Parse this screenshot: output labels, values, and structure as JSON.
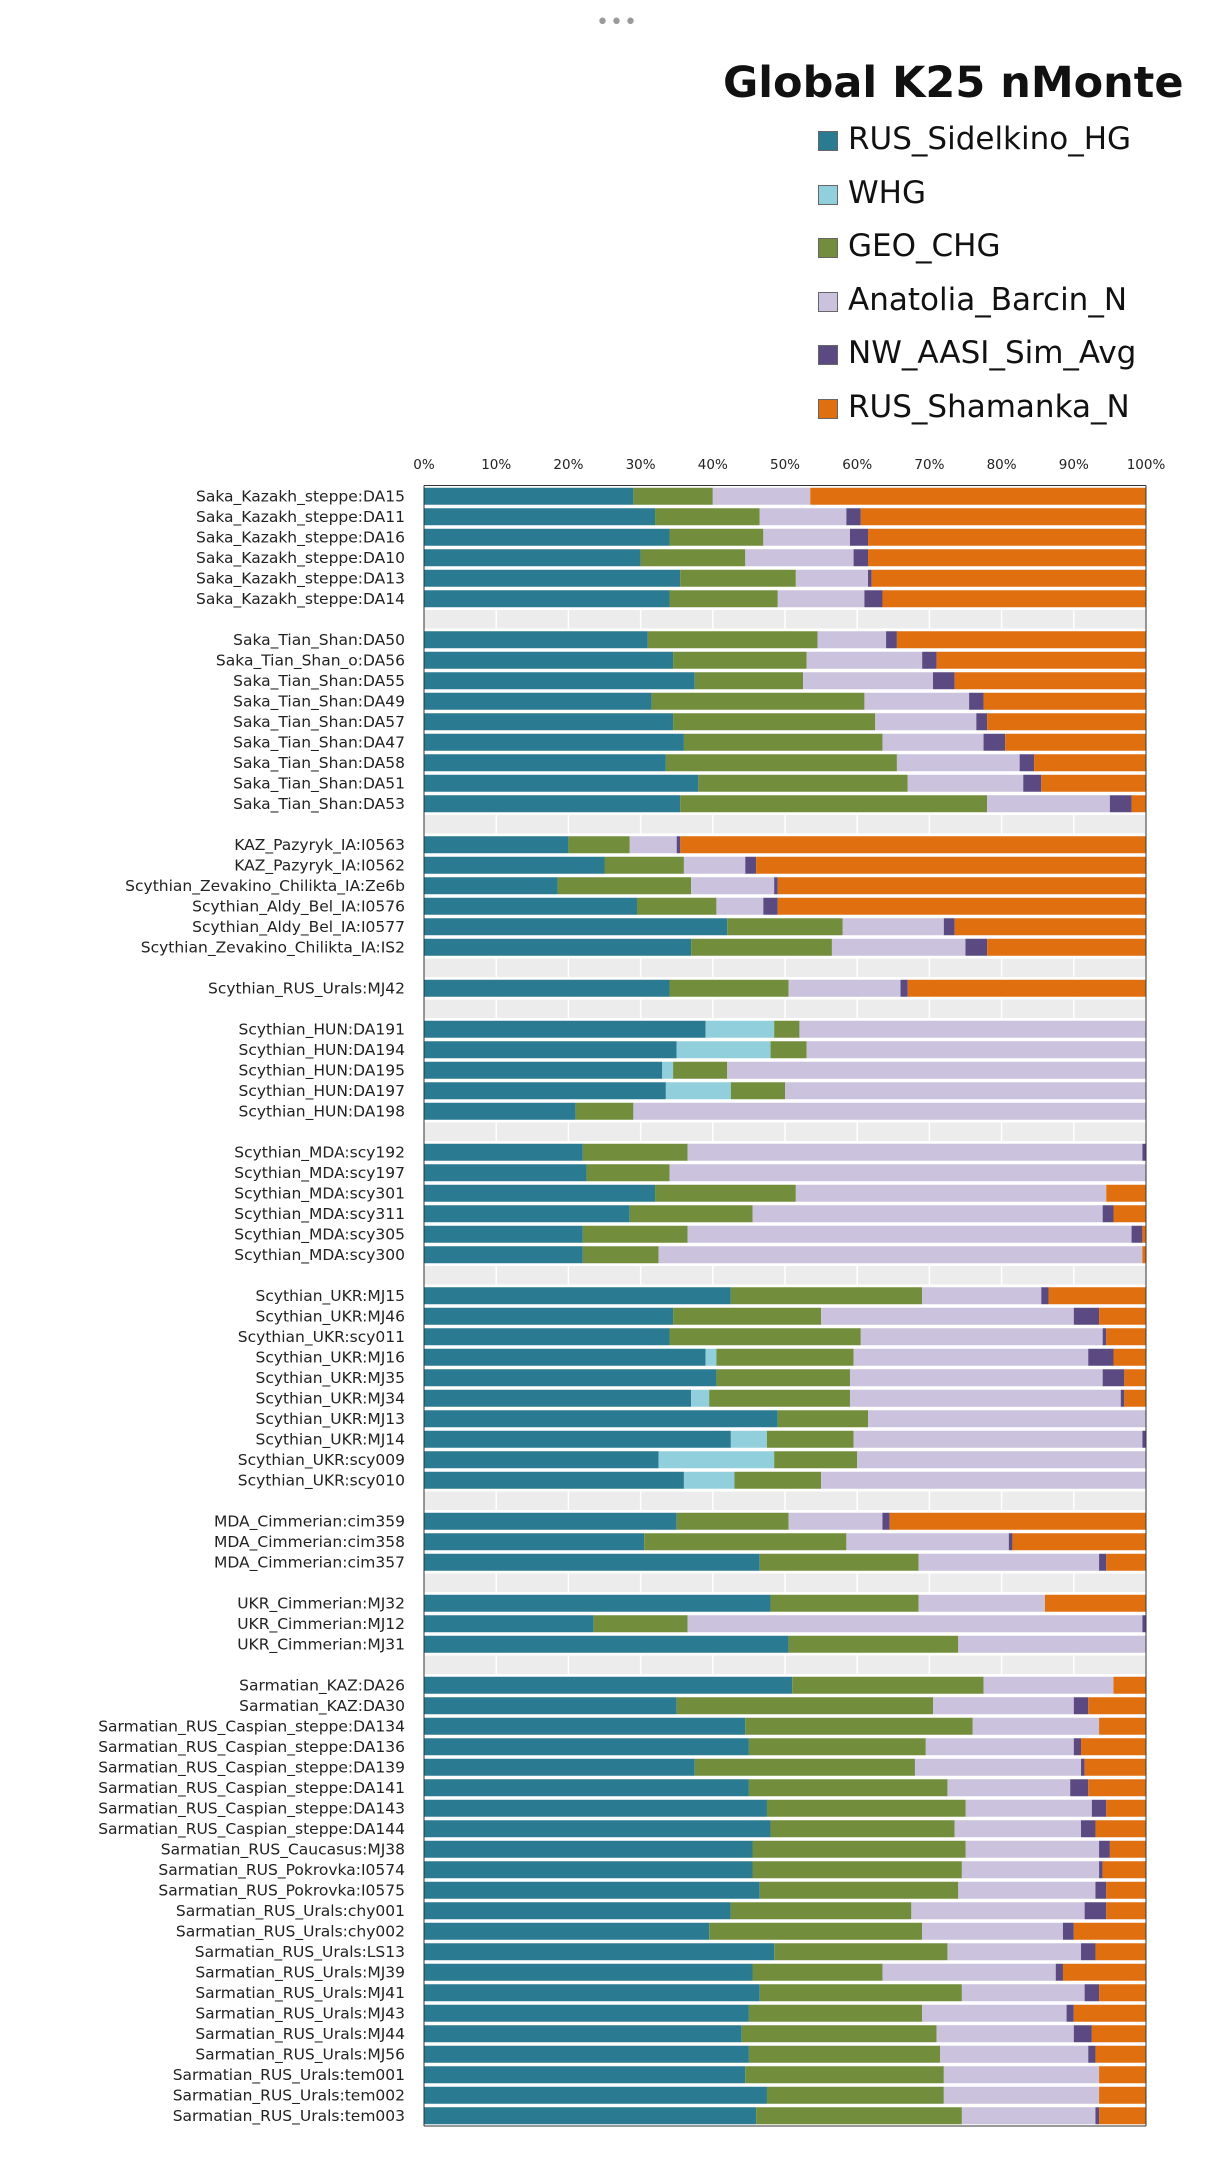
{
  "menu": {
    "dots": "•••"
  },
  "chart_data": {
    "type": "bar",
    "orientation": "horizontal",
    "stacked": true,
    "title": "Global K25 nMonte",
    "legend_position": "top-right",
    "xlim": [
      0,
      100
    ],
    "x_ticks": [
      "0%",
      "10%",
      "20%",
      "30%",
      "40%",
      "50%",
      "60%",
      "70%",
      "80%",
      "90%",
      "100%"
    ],
    "series": [
      {
        "name": "RUS_Sidelkino_HG",
        "color": "#2a7a92"
      },
      {
        "name": "WHG",
        "color": "#92cfdd"
      },
      {
        "name": "GEO_CHG",
        "color": "#728e3c"
      },
      {
        "name": "Anatolia_Barcin_N",
        "color": "#cbc2dd"
      },
      {
        "name": "NW_AASI_Sim_Avg",
        "color": "#5b4a82"
      },
      {
        "name": "RUS_Shamanka_N",
        "color": "#e06f10"
      }
    ],
    "groups": [
      {
        "rows": [
          {
            "label": "Saka_Kazakh_steppe:DA15",
            "values": [
              29,
              0,
              11,
              13.5,
              0,
              46.5
            ]
          },
          {
            "label": "Saka_Kazakh_steppe:DA11",
            "values": [
              32,
              0,
              14.5,
              12,
              2,
              39.5
            ]
          },
          {
            "label": "Saka_Kazakh_steppe:DA16",
            "values": [
              34,
              0,
              13,
              12,
              2.5,
              38.5
            ]
          },
          {
            "label": "Saka_Kazakh_steppe:DA10",
            "values": [
              30,
              0,
              14.5,
              15,
              2,
              38.5
            ]
          },
          {
            "label": "Saka_Kazakh_steppe:DA13",
            "values": [
              35.5,
              0,
              16,
              10,
              0.5,
              38
            ]
          },
          {
            "label": "Saka_Kazakh_steppe:DA14",
            "values": [
              34,
              0,
              15,
              12,
              2.5,
              36.5
            ]
          }
        ]
      },
      {
        "rows": [
          {
            "label": "Saka_Tian_Shan:DA50",
            "values": [
              31,
              0,
              23.5,
              9.5,
              1.5,
              34.5
            ]
          },
          {
            "label": "Saka_Tian_Shan_o:DA56",
            "values": [
              34.5,
              0,
              18.5,
              16,
              2,
              29
            ]
          },
          {
            "label": "Saka_Tian_Shan:DA55",
            "values": [
              37.5,
              0,
              15,
              18,
              3,
              26.5
            ]
          },
          {
            "label": "Saka_Tian_Shan:DA49",
            "values": [
              31.5,
              0,
              29.5,
              14.5,
              2,
              22.5
            ]
          },
          {
            "label": "Saka_Tian_Shan:DA57",
            "values": [
              34.5,
              0,
              28,
              14,
              1.5,
              22
            ]
          },
          {
            "label": "Saka_Tian_Shan:DA47",
            "values": [
              36,
              0,
              27.5,
              14,
              3,
              19.5
            ]
          },
          {
            "label": "Saka_Tian_Shan:DA58",
            "values": [
              33.5,
              0,
              32,
              17,
              2,
              15.5
            ]
          },
          {
            "label": "Saka_Tian_Shan:DA51",
            "values": [
              38,
              0,
              29,
              16,
              2.5,
              14.5
            ]
          },
          {
            "label": "Saka_Tian_Shan:DA53",
            "values": [
              35.5,
              0,
              42.5,
              17,
              3,
              2
            ]
          }
        ]
      },
      {
        "rows": [
          {
            "label": "KAZ_Pazyryk_IA:I0563",
            "values": [
              20,
              0,
              8.5,
              6.5,
              0.5,
              64.5
            ]
          },
          {
            "label": "KAZ_Pazyryk_IA:I0562",
            "values": [
              25,
              0,
              11,
              8.5,
              1.5,
              54
            ]
          },
          {
            "label": "Scythian_Zevakino_Chilikta_IA:Ze6b",
            "values": [
              18.5,
              0,
              18.5,
              11.5,
              0.5,
              51
            ]
          },
          {
            "label": "Scythian_Aldy_Bel_IA:I0576",
            "values": [
              29.5,
              0,
              11,
              6.5,
              2,
              51
            ]
          },
          {
            "label": "Scythian_Aldy_Bel_IA:I0577",
            "values": [
              42,
              0,
              16,
              14,
              1.5,
              26.5
            ]
          },
          {
            "label": "Scythian_Zevakino_Chilikta_IA:IS2",
            "values": [
              37,
              0,
              19.5,
              18.5,
              3,
              22
            ]
          }
        ]
      },
      {
        "rows": [
          {
            "label": "Scythian_RUS_Urals:MJ42",
            "values": [
              34,
              0,
              16.5,
              15.5,
              1,
              33
            ]
          }
        ]
      },
      {
        "rows": [
          {
            "label": "Scythian_HUN:DA191",
            "values": [
              39,
              9.5,
              3.5,
              48,
              0,
              0
            ]
          },
          {
            "label": "Scythian_HUN:DA194",
            "values": [
              35,
              13,
              5,
              47,
              0,
              0
            ]
          },
          {
            "label": "Scythian_HUN:DA195",
            "values": [
              33,
              1.5,
              7.5,
              58,
              0,
              0
            ]
          },
          {
            "label": "Scythian_HUN:DA197",
            "values": [
              33.5,
              9,
              7.5,
              50,
              0,
              0
            ]
          },
          {
            "label": "Scythian_HUN:DA198",
            "values": [
              21,
              0,
              8,
              71,
              0,
              0
            ]
          }
        ]
      },
      {
        "rows": [
          {
            "label": "Scythian_MDA:scy192",
            "values": [
              22,
              0,
              14.5,
              63,
              0.5,
              0
            ]
          },
          {
            "label": "Scythian_MDA:scy197",
            "values": [
              22.5,
              0,
              11.5,
              66,
              0,
              0
            ]
          },
          {
            "label": "Scythian_MDA:scy301",
            "values": [
              32,
              0,
              19.5,
              43,
              0,
              5.5
            ]
          },
          {
            "label": "Scythian_MDA:scy311",
            "values": [
              28.5,
              0,
              17,
              48.5,
              1.5,
              4.5
            ]
          },
          {
            "label": "Scythian_MDA:scy305",
            "values": [
              22,
              0,
              14.5,
              61.5,
              1.5,
              0.5
            ]
          },
          {
            "label": "Scythian_MDA:scy300",
            "values": [
              22,
              0,
              10.5,
              67,
              0,
              0.5
            ]
          }
        ]
      },
      {
        "rows": [
          {
            "label": "Scythian_UKR:MJ15",
            "values": [
              42.5,
              0,
              26.5,
              16.5,
              1,
              13.5
            ]
          },
          {
            "label": "Scythian_UKR:MJ46",
            "values": [
              34.5,
              0,
              20.5,
              35,
              3.5,
              6.5
            ]
          },
          {
            "label": "Scythian_UKR:scy011",
            "values": [
              34,
              0,
              26.5,
              33.5,
              0.5,
              5.5
            ]
          },
          {
            "label": "Scythian_UKR:MJ16",
            "values": [
              39,
              1.5,
              19,
              32.5,
              3.5,
              4.5
            ]
          },
          {
            "label": "Scythian_UKR:MJ35",
            "values": [
              40.5,
              0,
              18.5,
              35,
              3,
              3
            ]
          },
          {
            "label": "Scythian_UKR:MJ34",
            "values": [
              37,
              2.5,
              19.5,
              37.5,
              0.5,
              3
            ]
          },
          {
            "label": "Scythian_UKR:MJ13",
            "values": [
              49,
              0,
              12.5,
              38.5,
              0,
              0
            ]
          },
          {
            "label": "Scythian_UKR:MJ14",
            "values": [
              42.5,
              5,
              12,
              40,
              0.5,
              0
            ]
          },
          {
            "label": "Scythian_UKR:scy009",
            "values": [
              32.5,
              16,
              11.5,
              40,
              0,
              0
            ]
          },
          {
            "label": "Scythian_UKR:scy010",
            "values": [
              36,
              7,
              12,
              45,
              0,
              0
            ]
          }
        ]
      },
      {
        "rows": [
          {
            "label": "MDA_Cimmerian:cim359",
            "values": [
              35,
              0,
              15.5,
              13,
              1,
              35.5
            ]
          },
          {
            "label": "MDA_Cimmerian:cim358",
            "values": [
              30.5,
              0,
              28,
              22.5,
              0.5,
              18.5
            ]
          },
          {
            "label": "MDA_Cimmerian:cim357",
            "values": [
              46.5,
              0,
              22,
              25,
              1,
              5.5
            ]
          }
        ]
      },
      {
        "rows": [
          {
            "label": "UKR_Cimmerian:MJ32",
            "values": [
              48,
              0,
              20.5,
              17.5,
              0,
              14
            ]
          },
          {
            "label": "UKR_Cimmerian:MJ12",
            "values": [
              23.5,
              0,
              13,
              63,
              0.5,
              0
            ]
          },
          {
            "label": "UKR_Cimmerian:MJ31",
            "values": [
              50.5,
              0,
              23.5,
              26,
              0,
              0
            ]
          }
        ]
      },
      {
        "rows": [
          {
            "label": "Sarmatian_KAZ:DA26",
            "values": [
              51,
              0,
              26.5,
              18,
              0,
              4.5
            ]
          },
          {
            "label": "Sarmatian_KAZ:DA30",
            "values": [
              35,
              0,
              35.5,
              19.5,
              2,
              8
            ]
          },
          {
            "label": "Sarmatian_RUS_Caspian_steppe:DA134",
            "values": [
              44.5,
              0,
              31.5,
              17.5,
              0,
              6.5
            ]
          },
          {
            "label": "Sarmatian_RUS_Caspian_steppe:DA136",
            "values": [
              45,
              0,
              24.5,
              20.5,
              1,
              9
            ]
          },
          {
            "label": "Sarmatian_RUS_Caspian_steppe:DA139",
            "values": [
              37.5,
              0,
              30.5,
              23,
              0.5,
              8.5
            ]
          },
          {
            "label": "Sarmatian_RUS_Caspian_steppe:DA141",
            "values": [
              45,
              0,
              27.5,
              17,
              2.5,
              8
            ]
          },
          {
            "label": "Sarmatian_RUS_Caspian_steppe:DA143",
            "values": [
              47.5,
              0,
              27.5,
              17.5,
              2,
              5.5
            ]
          },
          {
            "label": "Sarmatian_RUS_Caspian_steppe:DA144",
            "values": [
              48,
              0,
              25.5,
              17.5,
              2,
              7
            ]
          },
          {
            "label": "Sarmatian_RUS_Caucasus:MJ38",
            "values": [
              45.5,
              0,
              29.5,
              18.5,
              1.5,
              5
            ]
          },
          {
            "label": "Sarmatian_RUS_Pokrovka:I0574",
            "values": [
              45.5,
              0,
              29,
              19,
              0.5,
              6
            ]
          },
          {
            "label": "Sarmatian_RUS_Pokrovka:I0575",
            "values": [
              46.5,
              0,
              27.5,
              19,
              1.5,
              5.5
            ]
          },
          {
            "label": "Sarmatian_RUS_Urals:chy001",
            "values": [
              42.5,
              0,
              25,
              24,
              3,
              5.5
            ]
          },
          {
            "label": "Sarmatian_RUS_Urals:chy002",
            "values": [
              39.5,
              0,
              29.5,
              19.5,
              1.5,
              10
            ]
          },
          {
            "label": "Sarmatian_RUS_Urals:LS13",
            "values": [
              48.5,
              0,
              24,
              18.5,
              2,
              7
            ]
          },
          {
            "label": "Sarmatian_RUS_Urals:MJ39",
            "values": [
              45.5,
              0,
              18,
              24,
              1,
              11.5
            ]
          },
          {
            "label": "Sarmatian_RUS_Urals:MJ41",
            "values": [
              46.5,
              0,
              28,
              17,
              2,
              6.5
            ]
          },
          {
            "label": "Sarmatian_RUS_Urals:MJ43",
            "values": [
              45,
              0,
              24,
              20,
              1,
              10
            ]
          },
          {
            "label": "Sarmatian_RUS_Urals:MJ44",
            "values": [
              44,
              0,
              27,
              19,
              2.5,
              7.5
            ]
          },
          {
            "label": "Sarmatian_RUS_Urals:MJ56",
            "values": [
              45,
              0,
              26.5,
              20.5,
              1,
              7
            ]
          },
          {
            "label": "Sarmatian_RUS_Urals:tem001",
            "values": [
              44.5,
              0,
              27.5,
              21.5,
              0,
              6.5
            ]
          },
          {
            "label": "Sarmatian_RUS_Urals:tem002",
            "values": [
              47.5,
              0,
              24.5,
              21.5,
              0,
              6.5
            ]
          },
          {
            "label": "Sarmatian_RUS_Urals:tem003",
            "values": [
              46,
              0,
              28.5,
              18.5,
              0.5,
              6.5
            ]
          }
        ]
      }
    ]
  }
}
